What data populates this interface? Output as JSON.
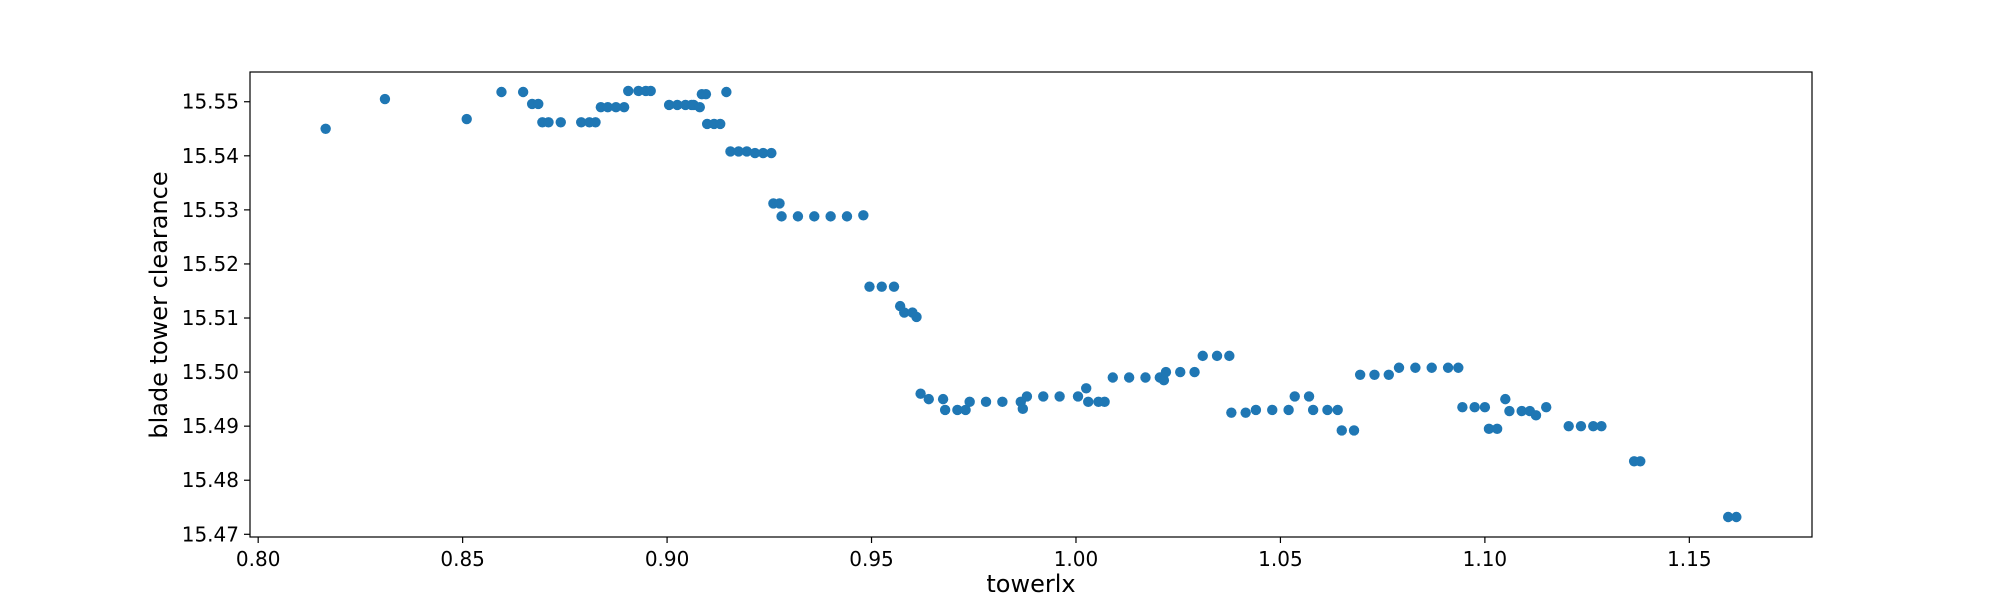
{
  "chart_data": {
    "type": "scatter",
    "title": "",
    "xlabel": "towerlx",
    "ylabel": "blade tower clearance",
    "xlim": [
      0.798,
      1.18
    ],
    "ylim": [
      15.4695,
      15.5555
    ],
    "xticks": [
      0.8,
      0.85,
      0.9,
      0.95,
      1.0,
      1.05,
      1.1,
      1.15
    ],
    "yticks": [
      15.47,
      15.48,
      15.49,
      15.5,
      15.51,
      15.52,
      15.53,
      15.54,
      15.55
    ],
    "xtick_labels": [
      "0.80",
      "0.85",
      "0.90",
      "0.95",
      "1.00",
      "1.05",
      "1.10",
      "1.15"
    ],
    "ytick_labels": [
      "15.47",
      "15.48",
      "15.49",
      "15.50",
      "15.51",
      "15.52",
      "15.53",
      "15.54",
      "15.55"
    ],
    "grid": false,
    "legend": "none",
    "marker_color": "#1f77b4",
    "series": [
      {
        "points": [
          [
            0.8165,
            15.545
          ],
          [
            0.831,
            15.5505
          ],
          [
            0.851,
            15.5468
          ],
          [
            0.8595,
            15.5518
          ],
          [
            0.8648,
            15.5518
          ],
          [
            0.867,
            15.5496
          ],
          [
            0.8685,
            15.5496
          ],
          [
            0.8695,
            15.5462
          ],
          [
            0.871,
            15.5462
          ],
          [
            0.874,
            15.5462
          ],
          [
            0.879,
            15.5462
          ],
          [
            0.881,
            15.5462
          ],
          [
            0.8825,
            15.5462
          ],
          [
            0.8838,
            15.549
          ],
          [
            0.8855,
            15.549
          ],
          [
            0.8875,
            15.549
          ],
          [
            0.8895,
            15.549
          ],
          [
            0.8905,
            15.552
          ],
          [
            0.893,
            15.552
          ],
          [
            0.8948,
            15.552
          ],
          [
            0.896,
            15.552
          ],
          [
            0.9005,
            15.5494
          ],
          [
            0.9025,
            15.5494
          ],
          [
            0.9045,
            15.5494
          ],
          [
            0.906,
            15.5494
          ],
          [
            0.9065,
            15.5494
          ],
          [
            0.908,
            15.549
          ],
          [
            0.9085,
            15.5514
          ],
          [
            0.9095,
            15.5514
          ],
          [
            0.9098,
            15.5459
          ],
          [
            0.9115,
            15.5459
          ],
          [
            0.913,
            15.5459
          ],
          [
            0.9145,
            15.5518
          ],
          [
            0.9155,
            15.5408
          ],
          [
            0.9175,
            15.5408
          ],
          [
            0.9195,
            15.5408
          ],
          [
            0.9215,
            15.5405
          ],
          [
            0.9235,
            15.5405
          ],
          [
            0.9255,
            15.5405
          ],
          [
            0.926,
            15.5312
          ],
          [
            0.9275,
            15.5312
          ],
          [
            0.928,
            15.5288
          ],
          [
            0.932,
            15.5288
          ],
          [
            0.936,
            15.5288
          ],
          [
            0.94,
            15.5288
          ],
          [
            0.944,
            15.5288
          ],
          [
            0.948,
            15.529
          ],
          [
            0.9495,
            15.5158
          ],
          [
            0.9525,
            15.5158
          ],
          [
            0.9555,
            15.5158
          ],
          [
            0.957,
            15.5122
          ],
          [
            0.958,
            15.511
          ],
          [
            0.96,
            15.511
          ],
          [
            0.961,
            15.5102
          ],
          [
            0.962,
            15.496
          ],
          [
            0.964,
            15.495
          ],
          [
            0.9675,
            15.495
          ],
          [
            0.968,
            15.493
          ],
          [
            0.971,
            15.493
          ],
          [
            0.973,
            15.493
          ],
          [
            0.974,
            15.4945
          ],
          [
            0.978,
            15.4945
          ],
          [
            0.982,
            15.4945
          ],
          [
            0.9865,
            15.4945
          ],
          [
            0.987,
            15.4932
          ],
          [
            0.988,
            15.4955
          ],
          [
            0.992,
            15.4955
          ],
          [
            0.996,
            15.4955
          ],
          [
            1.0005,
            15.4955
          ],
          [
            1.0025,
            15.497
          ],
          [
            1.003,
            15.4945
          ],
          [
            1.0055,
            15.4945
          ],
          [
            1.007,
            15.4945
          ],
          [
            1.009,
            15.499
          ],
          [
            1.013,
            15.499
          ],
          [
            1.017,
            15.499
          ],
          [
            1.0205,
            15.499
          ],
          [
            1.0215,
            15.4985
          ],
          [
            1.022,
            15.5
          ],
          [
            1.0255,
            15.5
          ],
          [
            1.029,
            15.5
          ],
          [
            1.031,
            15.503
          ],
          [
            1.0345,
            15.503
          ],
          [
            1.0375,
            15.503
          ],
          [
            1.038,
            15.4925
          ],
          [
            1.0415,
            15.4925
          ],
          [
            1.044,
            15.493
          ],
          [
            1.048,
            15.493
          ],
          [
            1.052,
            15.493
          ],
          [
            1.0535,
            15.4955
          ],
          [
            1.057,
            15.4955
          ],
          [
            1.058,
            15.493
          ],
          [
            1.0615,
            15.493
          ],
          [
            1.064,
            15.493
          ],
          [
            1.065,
            15.4892
          ],
          [
            1.068,
            15.4892
          ],
          [
            1.0695,
            15.4995
          ],
          [
            1.073,
            15.4995
          ],
          [
            1.0765,
            15.4995
          ],
          [
            1.079,
            15.5008
          ],
          [
            1.083,
            15.5008
          ],
          [
            1.087,
            15.5008
          ],
          [
            1.091,
            15.5008
          ],
          [
            1.0935,
            15.5008
          ],
          [
            1.0945,
            15.4935
          ],
          [
            1.0975,
            15.4935
          ],
          [
            1.1,
            15.4935
          ],
          [
            1.101,
            15.4895
          ],
          [
            1.103,
            15.4895
          ],
          [
            1.105,
            15.495
          ],
          [
            1.106,
            15.4928
          ],
          [
            1.109,
            15.4928
          ],
          [
            1.111,
            15.4928
          ],
          [
            1.1125,
            15.492
          ],
          [
            1.115,
            15.4935
          ],
          [
            1.1205,
            15.49
          ],
          [
            1.1235,
            15.49
          ],
          [
            1.1265,
            15.49
          ],
          [
            1.1285,
            15.49
          ],
          [
            1.1365,
            15.4835
          ],
          [
            1.138,
            15.4835
          ],
          [
            1.1595,
            15.4732
          ],
          [
            1.1615,
            15.4732
          ]
        ]
      }
    ]
  }
}
